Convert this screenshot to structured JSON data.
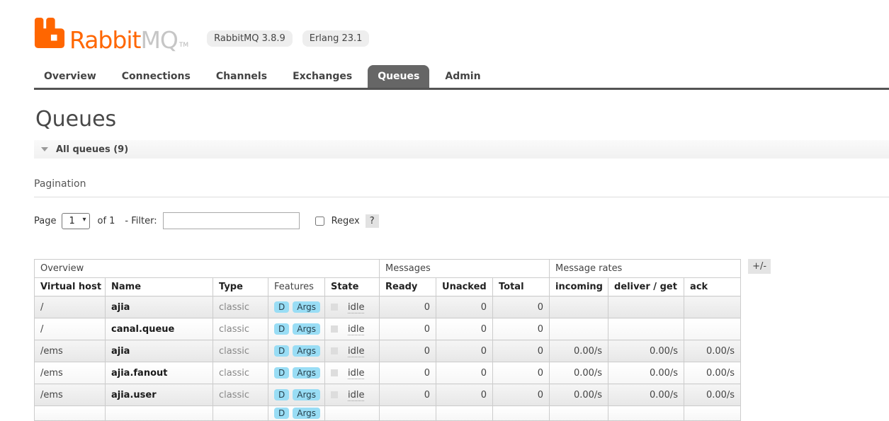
{
  "brand": {
    "name_orange": "Rabbit",
    "name_gray": "MQ",
    "tm": "TM",
    "badges": [
      "RabbitMQ 3.8.9",
      "Erlang 23.1"
    ]
  },
  "nav": {
    "tabs": [
      {
        "label": "Overview",
        "active": false
      },
      {
        "label": "Connections",
        "active": false
      },
      {
        "label": "Channels",
        "active": false
      },
      {
        "label": "Exchanges",
        "active": false
      },
      {
        "label": "Queues",
        "active": true
      },
      {
        "label": "Admin",
        "active": false
      }
    ]
  },
  "page": {
    "title": "Queues",
    "section_label": "All queues (9)",
    "pagination_heading": "Pagination"
  },
  "pagination": {
    "page_label": "Page",
    "page_value": "1",
    "of_label": "of 1",
    "filter_label": "- Filter:",
    "filter_value": "",
    "regex_label": "Regex",
    "help_label": "?"
  },
  "table": {
    "groups": [
      {
        "label": "Overview",
        "span": 5
      },
      {
        "label": "Messages",
        "span": 3
      },
      {
        "label": "Message rates",
        "span": 3
      }
    ],
    "columns": [
      "Virtual host",
      "Name",
      "Type",
      "Features",
      "State",
      "Ready",
      "Unacked",
      "Total",
      "incoming",
      "deliver / get",
      "ack"
    ],
    "columns_toggle_label": "+/-",
    "rows": [
      {
        "vhost": "/",
        "name": "ajia",
        "type": "classic",
        "features": [
          "D",
          "Args"
        ],
        "state": "idle",
        "ready": "0",
        "unacked": "0",
        "total": "0",
        "incoming": "",
        "deliver_get": "",
        "ack": ""
      },
      {
        "vhost": "/",
        "name": "canal.queue",
        "type": "classic",
        "features": [
          "D",
          "Args"
        ],
        "state": "idle",
        "ready": "0",
        "unacked": "0",
        "total": "0",
        "incoming": "",
        "deliver_get": "",
        "ack": ""
      },
      {
        "vhost": "/ems",
        "name": "ajia",
        "type": "classic",
        "features": [
          "D",
          "Args"
        ],
        "state": "idle",
        "ready": "0",
        "unacked": "0",
        "total": "0",
        "incoming": "0.00/s",
        "deliver_get": "0.00/s",
        "ack": "0.00/s"
      },
      {
        "vhost": "/ems",
        "name": "ajia.fanout",
        "type": "classic",
        "features": [
          "D",
          "Args"
        ],
        "state": "idle",
        "ready": "0",
        "unacked": "0",
        "total": "0",
        "incoming": "0.00/s",
        "deliver_get": "0.00/s",
        "ack": "0.00/s"
      },
      {
        "vhost": "/ems",
        "name": "ajia.user",
        "type": "classic",
        "features": [
          "D",
          "Args"
        ],
        "state": "idle",
        "ready": "0",
        "unacked": "0",
        "total": "0",
        "incoming": "0.00/s",
        "deliver_get": "0.00/s",
        "ack": "0.00/s"
      }
    ],
    "partial_row_features": [
      "D",
      "Args"
    ]
  },
  "colors": {
    "brand_orange": "#ff6600",
    "brand_gray": "#c6c6c6",
    "active_tab_bg": "#666666",
    "feature_badge_bg": "#99ddf5",
    "row_alt_bg": "#ebebeb",
    "section_bar_bg": "#f5f5f5"
  }
}
